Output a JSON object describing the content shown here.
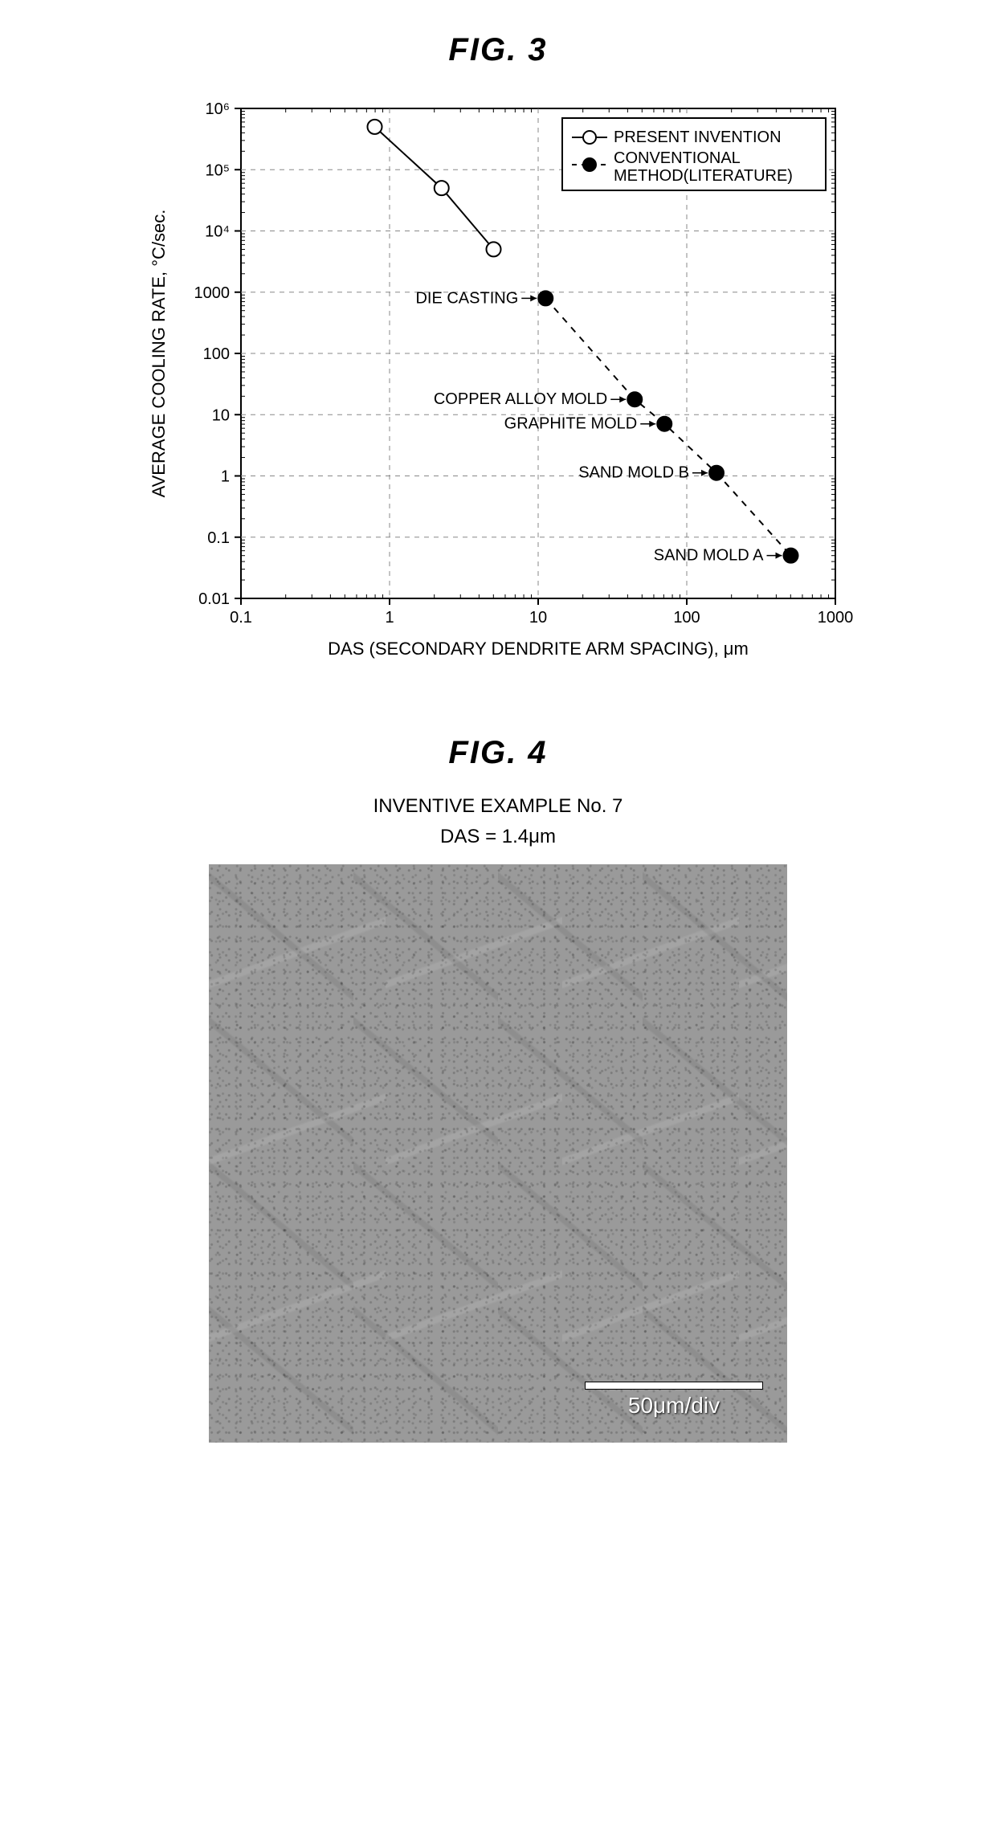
{
  "fig3": {
    "title": "FIG. 3",
    "ylabel": "AVERAGE COOLING RATE, °C/sec.",
    "xlabel": "DAS (SECONDARY DENDRITE ARM SPACING), μm",
    "legend": {
      "series1": "PRESENT INVENTION",
      "series2": "CONVENTIONAL METHOD(LITERATURE)"
    },
    "x_ticks": [
      "0.1",
      "1",
      "10",
      "100",
      "1000"
    ],
    "y_ticks": [
      "0.01",
      "0.1",
      "1",
      "10",
      "100",
      "1000",
      "10⁴",
      "10⁵",
      "10⁶"
    ],
    "x_range_log": [
      -1,
      3
    ],
    "y_range_log": [
      -2,
      6
    ],
    "series_present": {
      "points": [
        {
          "x_log": -0.1,
          "y_log": 5.7
        },
        {
          "x_log": 0.35,
          "y_log": 4.7
        },
        {
          "x_log": 0.7,
          "y_log": 3.7
        }
      ],
      "marker": "open-circle",
      "line_style": "solid",
      "color": "#000000"
    },
    "series_conventional": {
      "points": [
        {
          "x_log": 1.05,
          "y_log": 2.9,
          "label": "DIE CASTING"
        },
        {
          "x_log": 1.65,
          "y_log": 1.25,
          "label": "COPPER ALLOY MOLD"
        },
        {
          "x_log": 1.85,
          "y_log": 0.85,
          "label": "GRAPHITE MOLD"
        },
        {
          "x_log": 2.2,
          "y_log": 0.05,
          "label": "SAND MOLD B"
        },
        {
          "x_log": 2.7,
          "y_log": -1.3,
          "label": "SAND MOLD A"
        }
      ],
      "marker": "filled-circle",
      "line_style": "dashed",
      "color": "#000000"
    },
    "plot_bg": "#ffffff",
    "grid_color": "#888888",
    "axis_color": "#000000",
    "marker_radius": 9,
    "font_size_tick": 20,
    "font_size_label": 22,
    "font_size_legend": 20,
    "font_size_annotation": 20
  },
  "fig4": {
    "title": "FIG. 4",
    "subtitle": "INVENTIVE EXAMPLE No. 7",
    "das_label": "DAS = 1.4μm",
    "scale_label": "50μm/div",
    "image_description": "grayscale dendritic microstructure micrograph"
  }
}
